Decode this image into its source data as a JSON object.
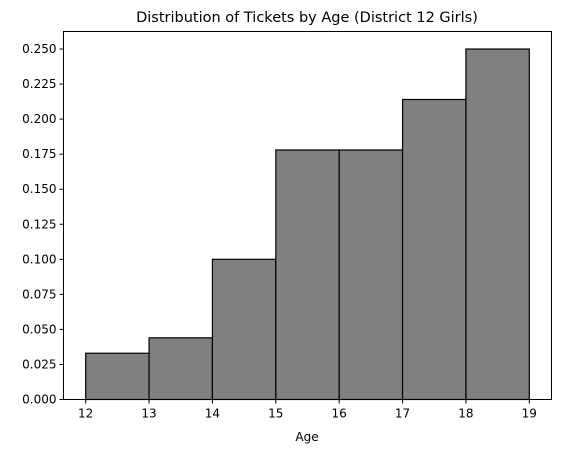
{
  "chart_data": {
    "type": "histogram",
    "title": "Distribution of Tickets by Age (District 12 Girls)",
    "xlabel": "Age",
    "ylabel": "",
    "bins": [
      {
        "x0": 12,
        "x1": 13,
        "value": 0.033
      },
      {
        "x0": 13,
        "x1": 14,
        "value": 0.044
      },
      {
        "x0": 14,
        "x1": 15,
        "value": 0.1
      },
      {
        "x0": 15,
        "x1": 16,
        "value": 0.178
      },
      {
        "x0": 16,
        "x1": 17,
        "value": 0.178
      },
      {
        "x0": 17,
        "x1": 18,
        "value": 0.214
      },
      {
        "x0": 18,
        "x1": 19,
        "value": 0.25
      }
    ],
    "xticks": [
      "12",
      "13",
      "14",
      "15",
      "16",
      "17",
      "18",
      "19"
    ],
    "yticks": [
      "0.000",
      "0.025",
      "0.050",
      "0.075",
      "0.100",
      "0.125",
      "0.150",
      "0.175",
      "0.200",
      "0.225",
      "0.250"
    ],
    "xlim": [
      11.65,
      19.35
    ],
    "ylim": [
      0,
      0.2625
    ],
    "grid": false,
    "colors": {
      "bar_fill": "#808080",
      "bar_edge": "#000000"
    }
  }
}
